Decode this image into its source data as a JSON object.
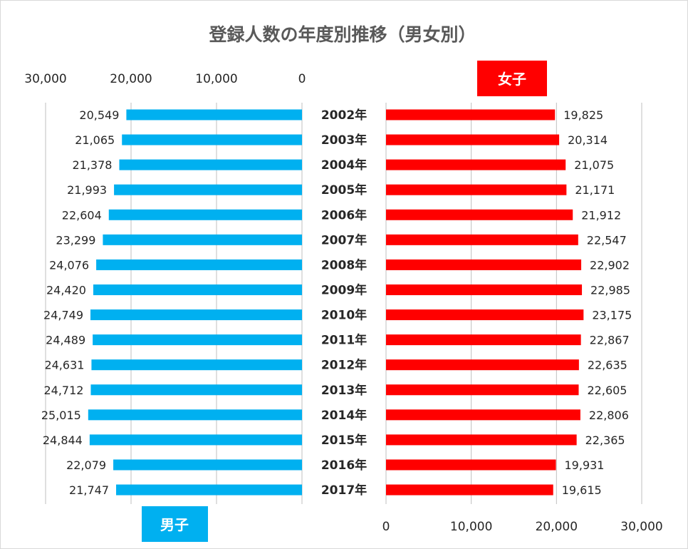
{
  "chart_data": {
    "type": "bar",
    "title": "登録人数の年度別推移（男女別）",
    "categories": [
      "2002年",
      "2003年",
      "2004年",
      "2005年",
      "2006年",
      "2007年",
      "2008年",
      "2009年",
      "2010年",
      "2011年",
      "2012年",
      "2013年",
      "2014年",
      "2015年",
      "2016年",
      "2017年"
    ],
    "series": [
      {
        "name": "男子",
        "color": "#00b0f0",
        "values": [
          20549,
          21065,
          21378,
          21993,
          22604,
          23299,
          24076,
          24420,
          24749,
          24489,
          24631,
          24712,
          25015,
          24844,
          22079,
          21747
        ],
        "labels": [
          "20,549",
          "21,065",
          "21,378",
          "21,993",
          "22,604",
          "23,299",
          "24,076",
          "24,420",
          "24,749",
          "24,489",
          "24,631",
          "24,712",
          "25,015",
          "24,844",
          "22,079",
          "21,747"
        ],
        "axis": {
          "min": 0,
          "max": 30000,
          "direction": "reversed",
          "ticks": [
            "30,000",
            "20,000",
            "10,000",
            "0"
          ]
        }
      },
      {
        "name": "女子",
        "color": "#ff0000",
        "values": [
          19825,
          20314,
          21075,
          21171,
          21912,
          22547,
          22902,
          22985,
          23175,
          22867,
          22635,
          22605,
          22806,
          22365,
          19931,
          19615
        ],
        "labels": [
          "19,825",
          "20,314",
          "21,075",
          "21,171",
          "21,912",
          "22,547",
          "22,902",
          "22,985",
          "23,175",
          "22,867",
          "22,635",
          "22,605",
          "22,806",
          "22,365",
          "19,931",
          "19,615"
        ],
        "axis": {
          "min": 0,
          "max": 30000,
          "direction": "normal",
          "ticks": [
            "0",
            "10,000",
            "20,000",
            "30,000"
          ]
        }
      }
    ],
    "grid": true
  }
}
